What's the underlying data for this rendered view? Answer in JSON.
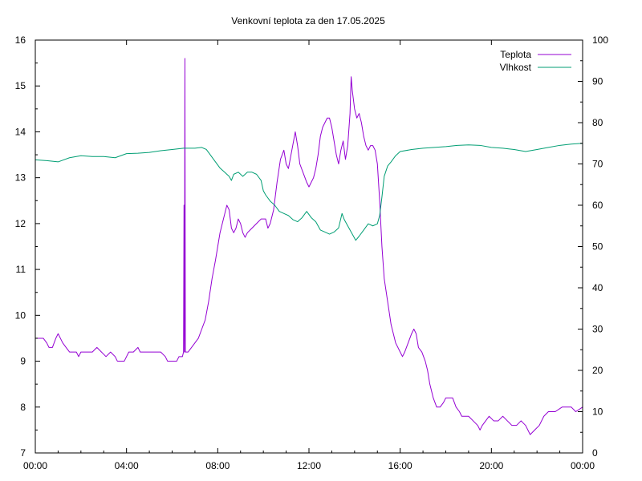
{
  "chart_data": {
    "type": "line",
    "title": "Venkovní teplota za den 17.05.2025",
    "xlabel": "",
    "ylabel": "",
    "y2label": "",
    "x_ticks": [
      "00:00",
      "04:00",
      "08:00",
      "12:00",
      "16:00",
      "20:00",
      "00:00"
    ],
    "xlim_hours": [
      0,
      24
    ],
    "ylim": [
      7,
      16
    ],
    "y_ticks": [
      7,
      8,
      9,
      10,
      11,
      12,
      13,
      14,
      15,
      16
    ],
    "y2lim": [
      0,
      100
    ],
    "y2_ticks": [
      0,
      10,
      20,
      30,
      40,
      50,
      60,
      70,
      80,
      90,
      100
    ],
    "grid": false,
    "legend_position": "top-right",
    "series": [
      {
        "name": "Teplota",
        "axis": "left",
        "color": "#9400d3",
        "points": [
          [
            0.0,
            9.5
          ],
          [
            0.35,
            9.5
          ],
          [
            0.5,
            9.4
          ],
          [
            0.6,
            9.3
          ],
          [
            0.75,
            9.3
          ],
          [
            0.9,
            9.5
          ],
          [
            1.0,
            9.6
          ],
          [
            1.1,
            9.5
          ],
          [
            1.2,
            9.4
          ],
          [
            1.35,
            9.3
          ],
          [
            1.5,
            9.2
          ],
          [
            1.8,
            9.2
          ],
          [
            1.9,
            9.1
          ],
          [
            2.0,
            9.2
          ],
          [
            2.5,
            9.2
          ],
          [
            2.7,
            9.3
          ],
          [
            2.9,
            9.2
          ],
          [
            3.1,
            9.1
          ],
          [
            3.3,
            9.2
          ],
          [
            3.5,
            9.1
          ],
          [
            3.6,
            9.0
          ],
          [
            3.9,
            9.0
          ],
          [
            4.0,
            9.1
          ],
          [
            4.1,
            9.2
          ],
          [
            4.3,
            9.2
          ],
          [
            4.5,
            9.3
          ],
          [
            4.6,
            9.2
          ],
          [
            5.0,
            9.2
          ],
          [
            5.5,
            9.2
          ],
          [
            5.7,
            9.1
          ],
          [
            5.8,
            9.0
          ],
          [
            6.2,
            9.0
          ],
          [
            6.3,
            9.1
          ],
          [
            6.45,
            9.1
          ],
          [
            6.5,
            9.2
          ],
          [
            6.52,
            12.4
          ],
          [
            6.54,
            9.2
          ],
          [
            6.56,
            15.6
          ],
          [
            6.58,
            9.2
          ],
          [
            6.7,
            9.2
          ],
          [
            6.85,
            9.3
          ],
          [
            7.0,
            9.4
          ],
          [
            7.15,
            9.5
          ],
          [
            7.3,
            9.7
          ],
          [
            7.45,
            9.9
          ],
          [
            7.6,
            10.3
          ],
          [
            7.75,
            10.8
          ],
          [
            7.9,
            11.2
          ],
          [
            8.0,
            11.5
          ],
          [
            8.1,
            11.8
          ],
          [
            8.2,
            12.0
          ],
          [
            8.3,
            12.2
          ],
          [
            8.4,
            12.4
          ],
          [
            8.5,
            12.3
          ],
          [
            8.6,
            11.9
          ],
          [
            8.7,
            11.8
          ],
          [
            8.8,
            11.9
          ],
          [
            8.9,
            12.1
          ],
          [
            9.0,
            12.0
          ],
          [
            9.1,
            11.8
          ],
          [
            9.2,
            11.7
          ],
          [
            9.3,
            11.8
          ],
          [
            9.5,
            11.9
          ],
          [
            9.7,
            12.0
          ],
          [
            9.9,
            12.1
          ],
          [
            10.1,
            12.1
          ],
          [
            10.2,
            11.9
          ],
          [
            10.3,
            12.0
          ],
          [
            10.45,
            12.3
          ],
          [
            10.6,
            12.9
          ],
          [
            10.75,
            13.4
          ],
          [
            10.9,
            13.6
          ],
          [
            11.0,
            13.3
          ],
          [
            11.1,
            13.2
          ],
          [
            11.25,
            13.6
          ],
          [
            11.4,
            14.0
          ],
          [
            11.5,
            13.7
          ],
          [
            11.6,
            13.3
          ],
          [
            11.75,
            13.1
          ],
          [
            11.9,
            12.9
          ],
          [
            12.0,
            12.8
          ],
          [
            12.1,
            12.9
          ],
          [
            12.2,
            13.0
          ],
          [
            12.3,
            13.2
          ],
          [
            12.4,
            13.5
          ],
          [
            12.5,
            13.9
          ],
          [
            12.6,
            14.1
          ],
          [
            12.7,
            14.2
          ],
          [
            12.8,
            14.3
          ],
          [
            12.9,
            14.3
          ],
          [
            13.0,
            14.1
          ],
          [
            13.1,
            13.8
          ],
          [
            13.2,
            13.5
          ],
          [
            13.3,
            13.3
          ],
          [
            13.4,
            13.6
          ],
          [
            13.5,
            13.8
          ],
          [
            13.6,
            13.4
          ],
          [
            13.7,
            13.7
          ],
          [
            13.8,
            14.4
          ],
          [
            13.85,
            15.2
          ],
          [
            13.9,
            14.9
          ],
          [
            14.0,
            14.5
          ],
          [
            14.1,
            14.3
          ],
          [
            14.2,
            14.4
          ],
          [
            14.3,
            14.2
          ],
          [
            14.4,
            13.9
          ],
          [
            14.5,
            13.7
          ],
          [
            14.6,
            13.6
          ],
          [
            14.7,
            13.7
          ],
          [
            14.8,
            13.7
          ],
          [
            14.9,
            13.6
          ],
          [
            15.0,
            13.3
          ],
          [
            15.1,
            12.5
          ],
          [
            15.2,
            11.5
          ],
          [
            15.3,
            10.8
          ],
          [
            15.45,
            10.3
          ],
          [
            15.6,
            9.8
          ],
          [
            15.8,
            9.4
          ],
          [
            16.0,
            9.2
          ],
          [
            16.1,
            9.1
          ],
          [
            16.2,
            9.2
          ],
          [
            16.35,
            9.4
          ],
          [
            16.5,
            9.6
          ],
          [
            16.6,
            9.7
          ],
          [
            16.7,
            9.6
          ],
          [
            16.8,
            9.3
          ],
          [
            16.95,
            9.2
          ],
          [
            17.1,
            9.0
          ],
          [
            17.2,
            8.8
          ],
          [
            17.3,
            8.5
          ],
          [
            17.45,
            8.2
          ],
          [
            17.6,
            8.0
          ],
          [
            17.75,
            8.0
          ],
          [
            17.9,
            8.1
          ],
          [
            18.0,
            8.2
          ],
          [
            18.3,
            8.2
          ],
          [
            18.45,
            8.0
          ],
          [
            18.6,
            7.9
          ],
          [
            18.7,
            7.8
          ],
          [
            18.9,
            7.8
          ],
          [
            19.0,
            7.8
          ],
          [
            19.2,
            7.7
          ],
          [
            19.4,
            7.6
          ],
          [
            19.5,
            7.5
          ],
          [
            19.6,
            7.6
          ],
          [
            19.75,
            7.7
          ],
          [
            19.9,
            7.8
          ],
          [
            20.1,
            7.7
          ],
          [
            20.3,
            7.7
          ],
          [
            20.5,
            7.8
          ],
          [
            20.7,
            7.7
          ],
          [
            20.9,
            7.6
          ],
          [
            21.1,
            7.6
          ],
          [
            21.3,
            7.7
          ],
          [
            21.5,
            7.6
          ],
          [
            21.7,
            7.4
          ],
          [
            21.9,
            7.5
          ],
          [
            22.1,
            7.6
          ],
          [
            22.3,
            7.8
          ],
          [
            22.5,
            7.9
          ],
          [
            22.8,
            7.9
          ],
          [
            23.1,
            8.0
          ],
          [
            23.5,
            8.0
          ],
          [
            23.7,
            7.9
          ],
          [
            24.0,
            8.0
          ]
        ]
      },
      {
        "name": "Vlhkost",
        "axis": "right",
        "color": "#009e73",
        "points": [
          [
            0.0,
            71.0
          ],
          [
            0.5,
            70.8
          ],
          [
            1.0,
            70.5
          ],
          [
            1.5,
            71.5
          ],
          [
            2.0,
            72.0
          ],
          [
            2.5,
            71.8
          ],
          [
            3.0,
            71.8
          ],
          [
            3.5,
            71.5
          ],
          [
            4.0,
            72.5
          ],
          [
            4.5,
            72.6
          ],
          [
            5.0,
            72.8
          ],
          [
            5.5,
            73.2
          ],
          [
            6.0,
            73.5
          ],
          [
            6.5,
            73.8
          ],
          [
            7.0,
            73.8
          ],
          [
            7.3,
            74.0
          ],
          [
            7.5,
            73.5
          ],
          [
            7.7,
            72.0
          ],
          [
            7.9,
            70.5
          ],
          [
            8.1,
            69.0
          ],
          [
            8.3,
            68.0
          ],
          [
            8.5,
            67.0
          ],
          [
            8.6,
            66.0
          ],
          [
            8.7,
            67.5
          ],
          [
            8.9,
            68.0
          ],
          [
            9.1,
            67.0
          ],
          [
            9.3,
            68.0
          ],
          [
            9.5,
            68.0
          ],
          [
            9.7,
            67.5
          ],
          [
            9.9,
            66.0
          ],
          [
            10.0,
            63.5
          ],
          [
            10.1,
            62.5
          ],
          [
            10.3,
            61.0
          ],
          [
            10.5,
            60.0
          ],
          [
            10.7,
            58.5
          ],
          [
            10.9,
            58.0
          ],
          [
            11.1,
            57.5
          ],
          [
            11.3,
            56.5
          ],
          [
            11.5,
            56.0
          ],
          [
            11.7,
            57.0
          ],
          [
            11.9,
            58.5
          ],
          [
            12.1,
            57.0
          ],
          [
            12.3,
            56.0
          ],
          [
            12.5,
            54.0
          ],
          [
            12.7,
            53.5
          ],
          [
            12.9,
            53.0
          ],
          [
            13.1,
            53.5
          ],
          [
            13.3,
            54.5
          ],
          [
            13.45,
            58.0
          ],
          [
            13.55,
            56.5
          ],
          [
            13.7,
            55.0
          ],
          [
            13.9,
            53.0
          ],
          [
            14.05,
            51.5
          ],
          [
            14.2,
            52.5
          ],
          [
            14.4,
            54.0
          ],
          [
            14.6,
            55.5
          ],
          [
            14.8,
            55.0
          ],
          [
            15.0,
            55.5
          ],
          [
            15.1,
            57.5
          ],
          [
            15.2,
            62.0
          ],
          [
            15.3,
            67.0
          ],
          [
            15.45,
            69.5
          ],
          [
            15.6,
            70.5
          ],
          [
            15.8,
            72.0
          ],
          [
            16.0,
            73.0
          ],
          [
            16.5,
            73.5
          ],
          [
            17.0,
            73.8
          ],
          [
            17.5,
            74.0
          ],
          [
            18.0,
            74.2
          ],
          [
            18.5,
            74.5
          ],
          [
            19.0,
            74.6
          ],
          [
            19.5,
            74.5
          ],
          [
            20.0,
            74.0
          ],
          [
            20.5,
            73.8
          ],
          [
            21.0,
            73.5
          ],
          [
            21.5,
            73.0
          ],
          [
            22.0,
            73.5
          ],
          [
            22.5,
            74.0
          ],
          [
            23.0,
            74.5
          ],
          [
            23.5,
            74.8
          ],
          [
            24.0,
            75.0
          ]
        ]
      }
    ]
  }
}
